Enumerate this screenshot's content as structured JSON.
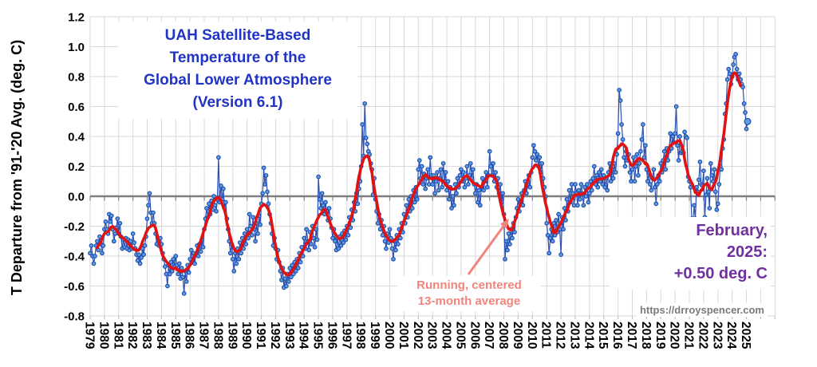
{
  "chart_data": {
    "type": "scatter+line",
    "title_lines": [
      "UAH Satellite-Based",
      "Temperature of the",
      "Global Lower Atmosphere",
      "(Version 6.1)"
    ],
    "title_color": "#2134c4",
    "grid_color": "#d9d9d9",
    "zero_line_color": "#7f7f7f",
    "y_axis": {
      "title": "T Departure from '91-'20 Avg. (deg. C)",
      "range": [
        -0.8,
        1.2
      ],
      "tick_step": 0.2,
      "tick_labels": [
        "1.2",
        "1.0",
        "0.8",
        "0.6",
        "0.4",
        "0.2",
        "0.0",
        "-0.2",
        "-0.4",
        "-0.6",
        "-0.8"
      ]
    },
    "x_axis": {
      "start_year": 1979,
      "end_year": 2025,
      "tick_labels": [
        "1979",
        "1980",
        "1981",
        "1982",
        "1983",
        "1984",
        "1985",
        "1986",
        "1987",
        "1988",
        "1989",
        "1990",
        "1991",
        "1992",
        "1993",
        "1994",
        "1995",
        "1996",
        "1997",
        "1998",
        "1999",
        "2000",
        "2001",
        "2002",
        "2003",
        "2004",
        "2005",
        "2006",
        "2007",
        "2008",
        "2009",
        "2010",
        "2011",
        "2012",
        "2013",
        "2014",
        "2015",
        "2016",
        "2017",
        "2018",
        "2019",
        "2020",
        "2021",
        "2022",
        "2023",
        "2024",
        "2025"
      ]
    },
    "series": [
      {
        "name": "Monthly global lower-atmosphere temperature anomaly",
        "start": "1979-01",
        "end": "2025-02",
        "line_color": "#2b50b5",
        "marker_stroke": "#1a4ab0",
        "marker_fill": "#5f9bd8",
        "values": [
          -0.38,
          -0.33,
          -0.4,
          -0.45,
          -0.4,
          -0.33,
          -0.3,
          -0.36,
          -0.27,
          -0.32,
          -0.38,
          -0.33,
          -0.22,
          -0.17,
          -0.22,
          -0.25,
          -0.12,
          -0.17,
          -0.13,
          -0.22,
          -0.3,
          -0.25,
          -0.21,
          -0.15,
          -0.25,
          -0.18,
          -0.27,
          -0.35,
          -0.29,
          -0.34,
          -0.28,
          -0.35,
          -0.29,
          -0.36,
          -0.3,
          -0.35,
          -0.25,
          -0.31,
          -0.35,
          -0.39,
          -0.43,
          -0.39,
          -0.45,
          -0.41,
          -0.35,
          -0.39,
          -0.33,
          -0.27,
          -0.15,
          -0.06,
          0.02,
          -0.11,
          -0.18,
          -0.11,
          -0.18,
          -0.25,
          -0.32,
          -0.28,
          -0.33,
          -0.28,
          -0.32,
          -0.38,
          -0.42,
          -0.47,
          -0.52,
          -0.6,
          -0.46,
          -0.52,
          -0.44,
          -0.5,
          -0.42,
          -0.47,
          -0.4,
          -0.46,
          -0.52,
          -0.45,
          -0.55,
          -0.48,
          -0.54,
          -0.65,
          -0.5,
          -0.57,
          -0.46,
          -0.51,
          -0.42,
          -0.36,
          -0.44,
          -0.38,
          -0.45,
          -0.39,
          -0.33,
          -0.4,
          -0.32,
          -0.37,
          -0.29,
          -0.34,
          -0.22,
          -0.15,
          -0.08,
          -0.14,
          -0.05,
          -0.12,
          -0.03,
          -0.09,
          0.0,
          -0.06,
          -0.1,
          -0.02,
          0.26,
          -0.04,
          0.07,
          -0.02,
          0.05,
          -0.08,
          -0.04,
          -0.15,
          -0.22,
          -0.3,
          -0.38,
          -0.32,
          -0.42,
          -0.5,
          -0.38,
          -0.45,
          -0.35,
          -0.42,
          -0.31,
          -0.38,
          -0.28,
          -0.35,
          -0.25,
          -0.32,
          -0.22,
          -0.28,
          -0.12,
          -0.2,
          -0.26,
          -0.14,
          -0.22,
          -0.3,
          -0.18,
          -0.25,
          -0.13,
          -0.19,
          -0.05,
          0.02,
          0.19,
          0.08,
          0.14,
          0.03,
          -0.05,
          -0.12,
          -0.18,
          -0.25,
          -0.33,
          -0.28,
          -0.35,
          -0.42,
          -0.36,
          -0.44,
          -0.5,
          -0.56,
          -0.48,
          -0.61,
          -0.55,
          -0.6,
          -0.52,
          -0.57,
          -0.48,
          -0.54,
          -0.46,
          -0.52,
          -0.44,
          -0.5,
          -0.42,
          -0.48,
          -0.38,
          -0.44,
          -0.34,
          -0.4,
          -0.28,
          -0.35,
          -0.22,
          -0.3,
          -0.36,
          -0.24,
          -0.32,
          -0.2,
          -0.28,
          -0.34,
          -0.22,
          -0.29,
          0.13,
          -0.02,
          -0.08,
          0.02,
          -0.06,
          -0.12,
          -0.04,
          -0.1,
          -0.16,
          -0.08,
          -0.15,
          -0.21,
          -0.28,
          -0.22,
          -0.3,
          -0.36,
          -0.28,
          -0.35,
          -0.27,
          -0.33,
          -0.25,
          -0.31,
          -0.23,
          -0.29,
          -0.2,
          -0.26,
          -0.14,
          -0.21,
          -0.09,
          -0.16,
          -0.04,
          -0.1,
          0.02,
          -0.05,
          0.05,
          0.1,
          0.2,
          0.48,
          0.27,
          0.62,
          0.39,
          0.35,
          0.3,
          0.28,
          0.22,
          0.18,
          0.01,
          0.12,
          -0.02,
          -0.1,
          -0.18,
          -0.12,
          -0.22,
          -0.16,
          -0.26,
          -0.2,
          -0.3,
          -0.35,
          -0.25,
          -0.31,
          -0.22,
          -0.28,
          -0.35,
          -0.42,
          -0.3,
          -0.36,
          -0.26,
          -0.32,
          -0.22,
          -0.28,
          -0.18,
          -0.24,
          -0.12,
          -0.18,
          -0.06,
          -0.14,
          -0.02,
          -0.1,
          0.0,
          -0.08,
          0.04,
          -0.04,
          0.06,
          -0.02,
          0.18,
          0.24,
          0.12,
          0.2,
          0.08,
          0.15,
          0.05,
          0.12,
          0.18,
          0.08,
          0.26,
          0.14,
          0.08,
          0.14,
          0.02,
          0.1,
          0.16,
          0.04,
          0.12,
          0.18,
          0.06,
          0.22,
          0.1,
          0.16,
          0.04,
          0.1,
          -0.02,
          0.06,
          -0.08,
          0.0,
          -0.06,
          0.08,
          0.02,
          0.12,
          0.06,
          0.14,
          0.18,
          0.1,
          0.16,
          0.06,
          0.12,
          0.2,
          0.08,
          0.14,
          0.22,
          0.12,
          0.18,
          0.08,
          0.02,
          0.08,
          -0.04,
          0.04,
          -0.06,
          0.06,
          0.12,
          0.04,
          0.1,
          0.16,
          0.06,
          0.14,
          0.3,
          0.2,
          0.14,
          0.22,
          0.1,
          0.16,
          0.06,
          0.12,
          0.02,
          0.08,
          -0.04,
          0.02,
          -0.12,
          -0.42,
          -0.3,
          -0.36,
          -0.25,
          -0.32,
          -0.22,
          -0.28,
          -0.18,
          -0.24,
          -0.14,
          -0.08,
          -0.02,
          -0.1,
          -0.04,
          0.02,
          -0.06,
          0.04,
          0.1,
          0.02,
          0.08,
          0.14,
          0.06,
          0.16,
          0.26,
          0.34,
          0.3,
          0.24,
          0.28,
          0.2,
          0.26,
          0.16,
          0.22,
          0.12,
          0.06,
          0.0,
          -0.18,
          -0.26,
          -0.38,
          -0.28,
          -0.22,
          -0.3,
          -0.18,
          -0.26,
          -0.16,
          -0.24,
          -0.12,
          -0.22,
          -0.39,
          -0.14,
          -0.22,
          -0.08,
          -0.16,
          -0.02,
          -0.1,
          0.04,
          -0.04,
          0.08,
          0.02,
          -0.06,
          0.08,
          0.02,
          -0.06,
          0.04,
          -0.02,
          0.08,
          0.02,
          -0.06,
          0.06,
          0.0,
          0.08,
          -0.04,
          0.02,
          0.1,
          0.04,
          0.12,
          0.2,
          0.08,
          0.14,
          0.06,
          0.16,
          0.1,
          0.18,
          0.08,
          0.14,
          0.06,
          0.12,
          0.04,
          0.16,
          0.22,
          0.1,
          0.18,
          0.12,
          0.22,
          0.16,
          0.28,
          0.42,
          0.71,
          0.64,
          0.48,
          0.38,
          0.26,
          0.2,
          0.3,
          0.24,
          0.28,
          0.16,
          0.1,
          0.18,
          0.26,
          0.1,
          0.2,
          0.28,
          0.14,
          0.22,
          0.3,
          0.38,
          0.48,
          0.26,
          0.34,
          0.18,
          0.1,
          0.16,
          0.08,
          0.04,
          0.12,
          0.18,
          0.06,
          -0.05,
          0.08,
          0.14,
          0.1,
          0.22,
          0.16,
          0.24,
          0.3,
          0.18,
          0.32,
          0.24,
          0.3,
          0.42,
          0.32,
          0.4,
          0.36,
          0.42,
          0.6,
          0.34,
          0.24,
          0.4,
          0.29,
          0.3,
          0.29,
          0.43,
          0.4,
          0.39,
          0.13,
          0.1,
          0.06,
          -0.15,
          -0.19,
          -0.06,
          -0.15,
          0.06,
          0.03,
          0.11,
          0.23,
          0.08,
          0.07,
          0.17,
          -0.14,
          0.01,
          0.12,
          0.03,
          -0.08,
          0.22,
          0.14,
          0.1,
          0.18,
          0.03,
          -0.09,
          -0.05,
          0.08,
          0.2,
          0.18,
          0.32,
          0.38,
          0.55,
          0.62,
          0.78,
          0.85,
          0.82,
          0.75,
          0.8,
          0.88,
          0.93,
          0.95,
          0.85,
          0.78,
          0.82,
          0.78,
          0.75,
          0.73,
          0.62,
          0.56,
          0.45,
          0.5
        ]
      },
      {
        "name": "Running, centered 13-month average",
        "color": "#e01212",
        "derived_from": "monthly series",
        "window_months": 13,
        "centered": true
      }
    ],
    "annotations": {
      "running_average_label": {
        "lines": [
          "Running, centered",
          "13-month average"
        ],
        "color": "#f2847c",
        "arrow_from_xy": [
          587,
          344
        ],
        "arrow_to_xy": [
          638,
          274
        ]
      },
      "latest_value_label": {
        "lines": [
          "February,",
          "2025:",
          "+0.50 deg. C"
        ],
        "color": "#7030a0"
      },
      "website": {
        "text": "https://drroyspencer.com",
        "color": "#7a7a7a"
      }
    }
  }
}
